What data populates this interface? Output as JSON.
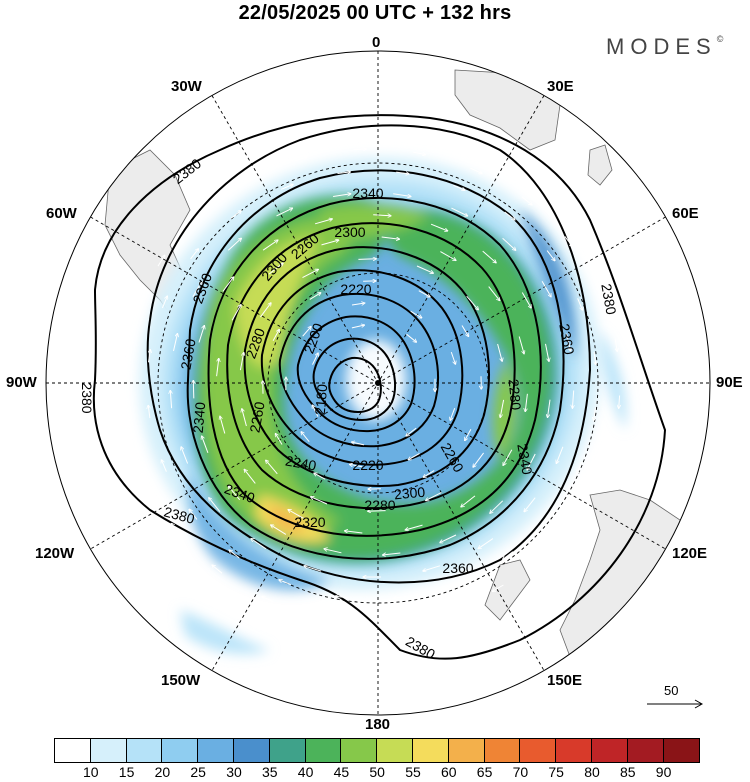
{
  "title": "22/05/2025  00 UTC  + 132 hrs",
  "brand": "MODES",
  "brand_mark": "©",
  "longitude_labels": {
    "n0": "0",
    "n30e": "30E",
    "n60e": "60E",
    "n90e": "90E",
    "n120e": "120E",
    "n150e": "150E",
    "n180": "180",
    "n150w": "150W",
    "n120w": "120W",
    "n90w": "90W",
    "n60w": "60W",
    "n30w": "30W"
  },
  "contour_labels": [
    "2380",
    "2380",
    "2380",
    "2380",
    "2380",
    "2360",
    "2360",
    "2360",
    "2360",
    "2340",
    "2340",
    "2340",
    "2340",
    "2320",
    "2300",
    "2300",
    "2300",
    "2280",
    "2280",
    "2280",
    "2260",
    "2260",
    "2260",
    "2240",
    "2220",
    "2220",
    "2200",
    "2180"
  ],
  "reference_vector": {
    "label": "50"
  },
  "colorbar": {
    "ticks": [
      "10",
      "15",
      "20",
      "25",
      "30",
      "35",
      "40",
      "45",
      "50",
      "55",
      "60",
      "65",
      "70",
      "75",
      "80",
      "85",
      "90"
    ],
    "colors": [
      "#ffffff",
      "#d6f0fb",
      "#b5e2f8",
      "#8fcdf0",
      "#6aafe2",
      "#4a8fcc",
      "#3fa28a",
      "#4cb35a",
      "#86c84a",
      "#c6dc55",
      "#f4dc5c",
      "#f3b04b",
      "#ef8435",
      "#e85b2e",
      "#d83a2a",
      "#bf2527",
      "#a31b22",
      "#8a1417"
    ]
  }
}
